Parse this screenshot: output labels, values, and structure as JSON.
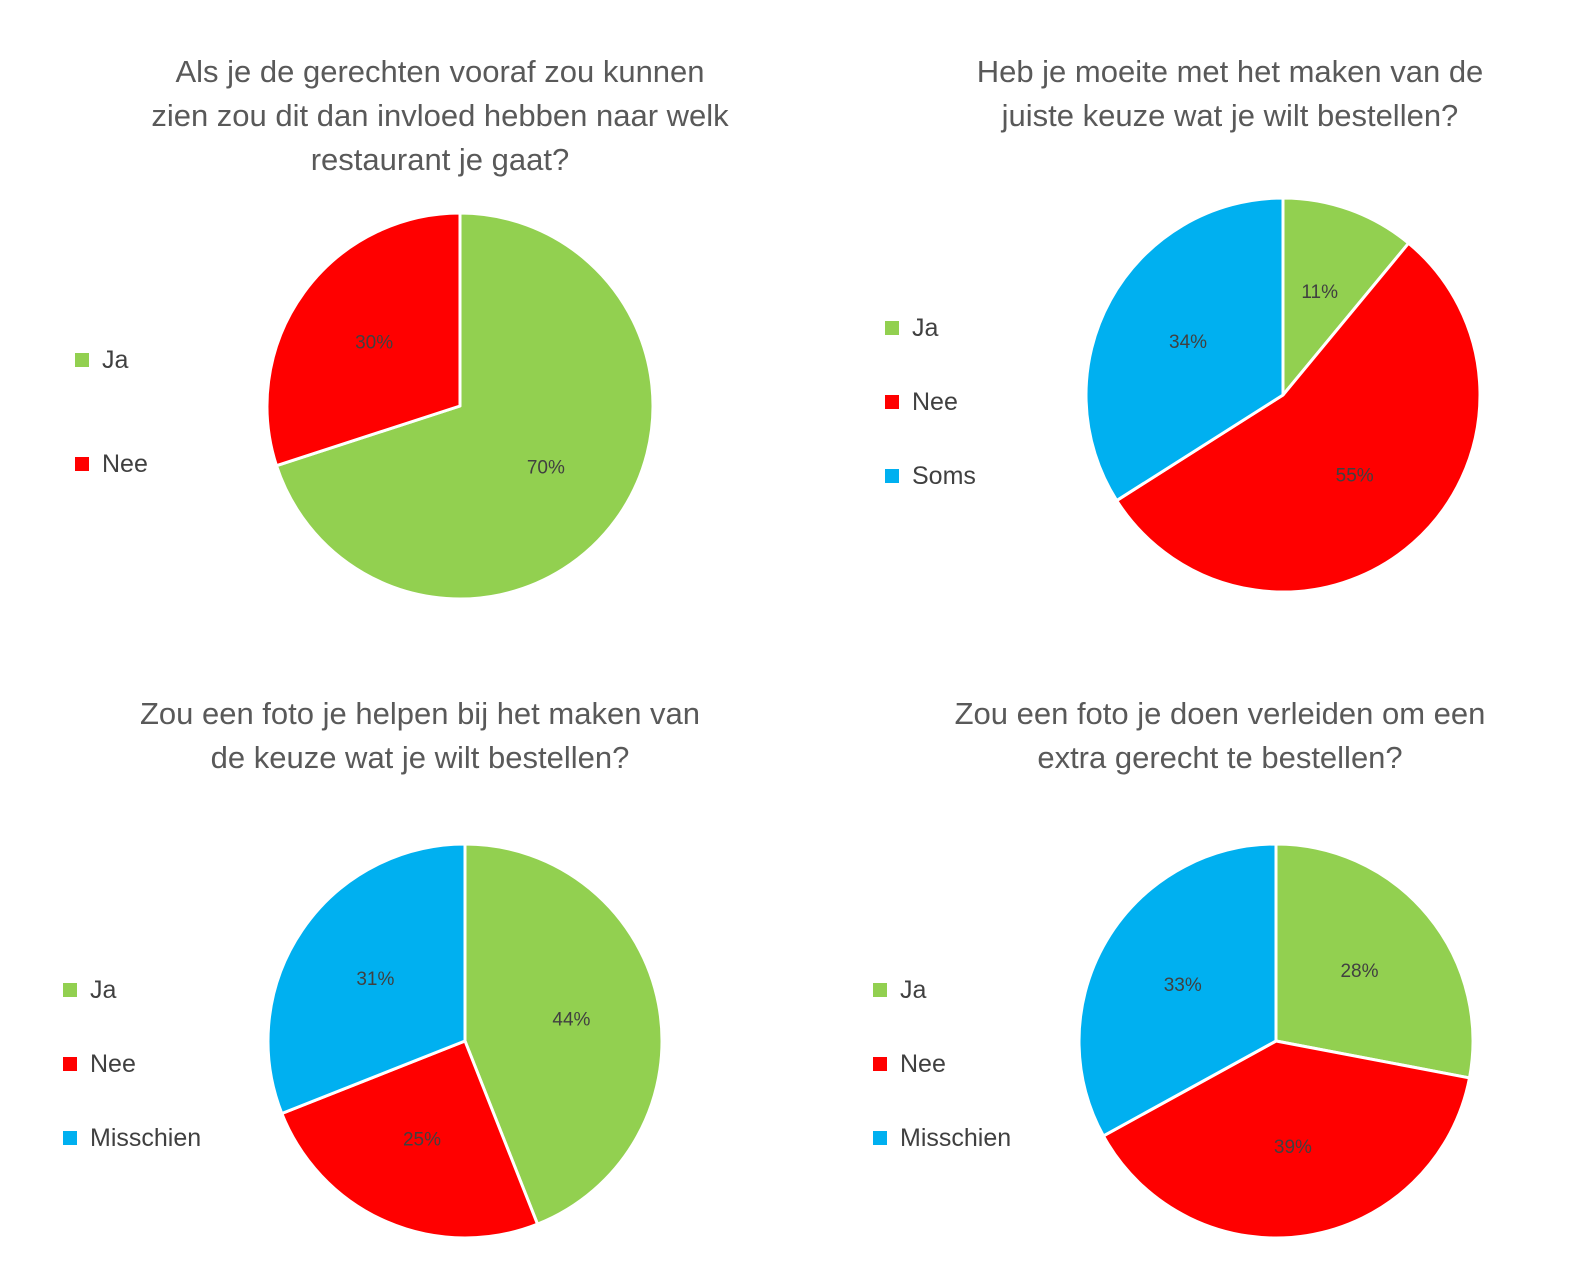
{
  "chart_data": [
    {
      "type": "pie",
      "title_lines": [
        "Als je de gerechten vooraf zou kunnen",
        "zien zou dit dan invloed hebben naar welk",
        "restaurant je gaat?"
      ],
      "categories": [
        "Ja",
        "Nee"
      ],
      "values": [
        70,
        30
      ],
      "labels": [
        "70%",
        "30%"
      ],
      "colors": [
        "#92D050",
        "#FF0000"
      ],
      "legend": "left"
    },
    {
      "type": "pie",
      "title_lines": [
        "Heb je moeite met het maken van de",
        "juiste keuze wat je wilt bestellen?"
      ],
      "categories": [
        "Ja",
        "Nee",
        "Soms"
      ],
      "values": [
        11,
        55,
        34
      ],
      "labels": [
        "11%",
        "55%",
        "34%"
      ],
      "colors": [
        "#92D050",
        "#FF0000",
        "#00B0F0"
      ],
      "legend": "left"
    },
    {
      "type": "pie",
      "title_lines": [
        "Zou een foto je helpen bij het maken van",
        "de keuze wat je wilt bestellen?"
      ],
      "categories": [
        "Ja",
        "Nee",
        "Misschien"
      ],
      "values": [
        44,
        25,
        31
      ],
      "labels": [
        "44%",
        "25%",
        "31%"
      ],
      "colors": [
        "#92D050",
        "#FF0000",
        "#00B0F0"
      ],
      "legend": "left"
    },
    {
      "type": "pie",
      "title_lines": [
        "Zou een foto je doen verleiden om een",
        "extra gerecht te bestellen?"
      ],
      "categories": [
        "Ja",
        "Nee",
        "Misschien"
      ],
      "values": [
        28,
        39,
        33
      ],
      "labels": [
        "28%",
        "39%",
        "33%"
      ],
      "colors": [
        "#92D050",
        "#FF0000",
        "#00B0F0"
      ],
      "legend": "left"
    }
  ]
}
